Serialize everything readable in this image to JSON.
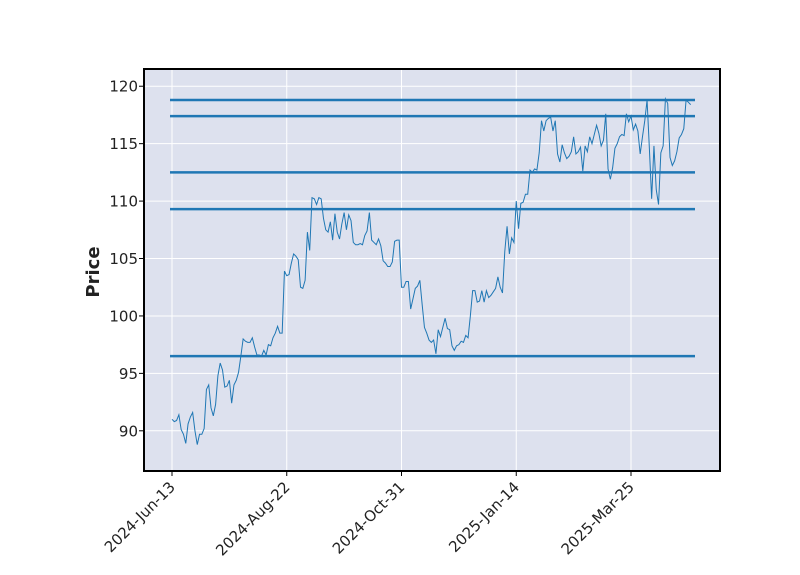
{
  "chart_data": {
    "type": "line",
    "title": "",
    "xlabel": "",
    "ylabel": "Price",
    "ylim": [
      86.5,
      121.5
    ],
    "y_ticks": [
      90,
      95,
      100,
      105,
      110,
      115,
      120
    ],
    "x_ticks": [
      "2024-Jun-13",
      "2024-Aug-22",
      "2024-Oct-31",
      "2025-Jan-14",
      "2025-Mar-25"
    ],
    "x_tick_index": [
      0,
      50,
      100,
      150,
      200
    ],
    "grid": true,
    "colors": {
      "background": "#dde1ee",
      "line": "#1f77b4",
      "grid": "#ffffff",
      "frame": "#000000"
    },
    "horizontal_levels": [
      96.5,
      109.3,
      112.5,
      117.4,
      118.8
    ],
    "series": [
      {
        "values": [
          91.0,
          90.8,
          90.9,
          91.4,
          90.1,
          89.7,
          88.9,
          90.6,
          91.2,
          91.6,
          90.0,
          88.8,
          89.7,
          89.7,
          90.2,
          93.6,
          94.0,
          92.0,
          91.3,
          92.3,
          94.8,
          95.9,
          95.3,
          93.8,
          93.9,
          94.4,
          92.4,
          94.0,
          94.4,
          95.1,
          96.5,
          98.0,
          97.8,
          97.7,
          97.7,
          98.1,
          97.3,
          96.6,
          96.6,
          96.5,
          97.0,
          96.6,
          97.5,
          97.4,
          98.1,
          98.5,
          99.1,
          98.5,
          98.5,
          103.9,
          103.5,
          103.6,
          104.6,
          105.4,
          105.2,
          104.9,
          102.5,
          102.4,
          103.1,
          107.3,
          105.7,
          110.3,
          110.2,
          109.7,
          110.3,
          110.2,
          108.5,
          107.5,
          107.3,
          108.2,
          106.6,
          108.9,
          107.3,
          106.7,
          108.0,
          109.0,
          107.5,
          108.8,
          108.3,
          106.4,
          106.2,
          106.2,
          106.3,
          106.2,
          107.0,
          107.4,
          109.0,
          106.6,
          106.4,
          106.2,
          106.7,
          106.1,
          104.8,
          104.6,
          104.3,
          104.3,
          104.7,
          106.5,
          106.6,
          106.6,
          102.5,
          102.5,
          103.0,
          103.0,
          100.6,
          101.5,
          102.4,
          102.6,
          103.1,
          101.0,
          99.0,
          98.5,
          97.9,
          97.7,
          97.9,
          96.7,
          98.8,
          98.2,
          99.0,
          99.8,
          98.9,
          98.8,
          97.4,
          97.0,
          97.4,
          97.5,
          97.8,
          97.7,
          98.3,
          98.1,
          100.0,
          102.2,
          102.2,
          101.2,
          101.3,
          102.2,
          101.2,
          102.2,
          101.6,
          101.8,
          102.1,
          102.4,
          103.4,
          102.5,
          102.0,
          105.6,
          107.8,
          105.4,
          106.8,
          106.4,
          110.0,
          107.6,
          109.8,
          109.9,
          110.6,
          110.6,
          112.7,
          112.5,
          112.8,
          112.7,
          114.2,
          117.0,
          116.1,
          117.0,
          117.2,
          117.3,
          116.1,
          117.0,
          114.1,
          113.4,
          114.9,
          114.2,
          113.7,
          113.9,
          114.3,
          115.6,
          114.1,
          114.3,
          114.7,
          112.6,
          114.8,
          114.3,
          115.6,
          115.0,
          115.8,
          116.6,
          115.9,
          114.8,
          115.3,
          117.6,
          112.8,
          111.9,
          112.9,
          114.6,
          115.0,
          115.6,
          115.8,
          115.7,
          117.6,
          116.9,
          117.4,
          116.2,
          116.7,
          116.1,
          114.1,
          115.6,
          117.0,
          118.8,
          114.6,
          110.2,
          114.8,
          111.0,
          109.7,
          114.2,
          114.8,
          118.9,
          118.5,
          113.8,
          113.1,
          113.5,
          114.3,
          115.5,
          115.8,
          116.3,
          118.8,
          118.6,
          118.4
        ]
      }
    ]
  }
}
